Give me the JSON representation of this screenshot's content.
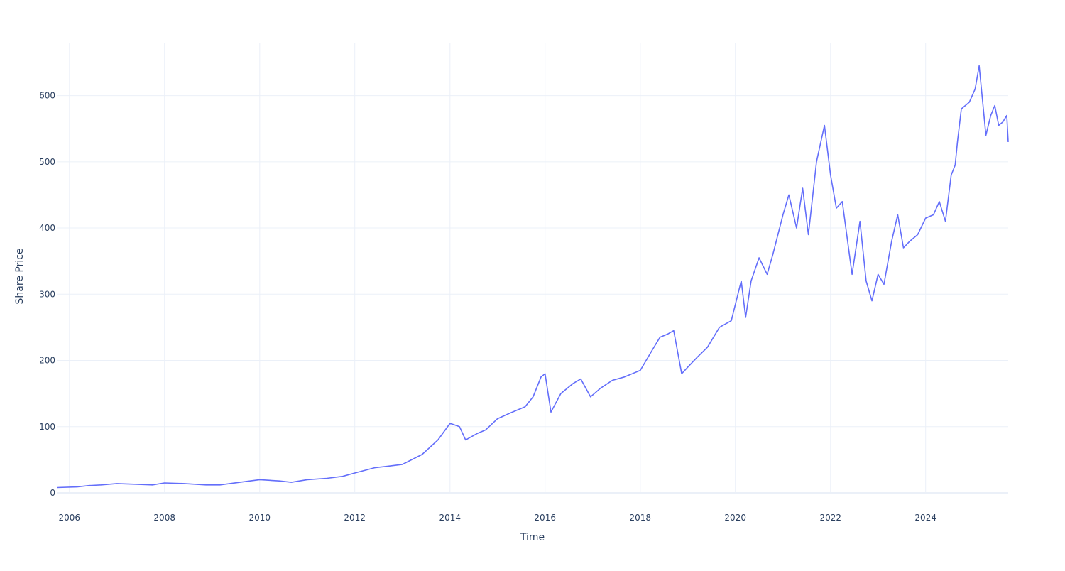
{
  "chart_data": {
    "type": "line",
    "title": "",
    "xlabel": "Time",
    "ylabel": "Share Price",
    "x_range": [
      "2005-09-26",
      "2025-09-26"
    ],
    "ylim": [
      0,
      680
    ],
    "x_tick_labels": [
      "2006",
      "2008",
      "2010",
      "2012",
      "2014",
      "2016",
      "2018",
      "2020",
      "2022",
      "2024"
    ],
    "y_tick_values": [
      0,
      100,
      200,
      300,
      400,
      500,
      600
    ],
    "grid": true,
    "legend": "none",
    "series": [
      {
        "color": "#636efa",
        "x": [
          "2005-09-26",
          "2006-03-01",
          "2006-06-01",
          "2006-09-01",
          "2007-01-01",
          "2007-06-01",
          "2007-10-01",
          "2008-01-01",
          "2008-06-01",
          "2008-11-15",
          "2009-03-01",
          "2009-08-01",
          "2010-01-01",
          "2010-06-01",
          "2010-09-01",
          "2011-01-01",
          "2011-06-01",
          "2011-10-01",
          "2012-01-01",
          "2012-06-01",
          "2012-09-01",
          "2013-01-01",
          "2013-06-01",
          "2013-10-01",
          "2014-01-01",
          "2014-03-15",
          "2014-05-01",
          "2014-08-01",
          "2014-10-01",
          "2015-01-01",
          "2015-04-01",
          "2015-08-01",
          "2015-10-01",
          "2015-12-01",
          "2016-01-01",
          "2016-02-15",
          "2016-05-01",
          "2016-08-01",
          "2016-10-01",
          "2016-12-15",
          "2017-03-01",
          "2017-06-01",
          "2017-09-01",
          "2018-01-01",
          "2018-04-01",
          "2018-06-01",
          "2018-08-01",
          "2018-09-15",
          "2018-11-15",
          "2019-01-01",
          "2019-03-15",
          "2019-06-01",
          "2019-09-01",
          "2019-12-01",
          "2020-02-15",
          "2020-03-20",
          "2020-05-01",
          "2020-07-01",
          "2020-09-01",
          "2020-10-15",
          "2021-01-01",
          "2021-02-15",
          "2021-04-15",
          "2021-06-01",
          "2021-07-15",
          "2021-09-15",
          "2021-11-15",
          "2022-01-01",
          "2022-02-15",
          "2022-04-01",
          "2022-06-15",
          "2022-08-15",
          "2022-10-01",
          "2022-11-15",
          "2023-01-01",
          "2023-02-15",
          "2023-04-15",
          "2023-06-01",
          "2023-07-15",
          "2023-09-01",
          "2023-11-01",
          "2024-01-01",
          "2024-03-01",
          "2024-04-15",
          "2024-06-01",
          "2024-07-15",
          "2024-08-15",
          "2024-09-01",
          "2024-10-01",
          "2024-12-01",
          "2025-01-15",
          "2025-02-15",
          "2025-04-08",
          "2025-05-15",
          "2025-06-15",
          "2025-07-15",
          "2025-08-15",
          "2025-09-15",
          "2025-09-26"
        ],
        "y": [
          8,
          9,
          11,
          12,
          14,
          13,
          12,
          15,
          14,
          12,
          12,
          16,
          20,
          18,
          16,
          20,
          22,
          25,
          30,
          38,
          40,
          43,
          58,
          80,
          105,
          100,
          80,
          90,
          95,
          112,
          120,
          130,
          145,
          175,
          180,
          122,
          150,
          165,
          172,
          145,
          158,
          170,
          175,
          185,
          215,
          235,
          240,
          245,
          180,
          190,
          205,
          220,
          250,
          260,
          320,
          265,
          320,
          355,
          330,
          360,
          420,
          450,
          400,
          460,
          390,
          500,
          555,
          480,
          430,
          440,
          330,
          410,
          320,
          290,
          330,
          315,
          380,
          420,
          370,
          380,
          390,
          415,
          420,
          440,
          410,
          480,
          495,
          530,
          580,
          590,
          610,
          645,
          540,
          570,
          585,
          555,
          560,
          570,
          530
        ]
      }
    ]
  }
}
